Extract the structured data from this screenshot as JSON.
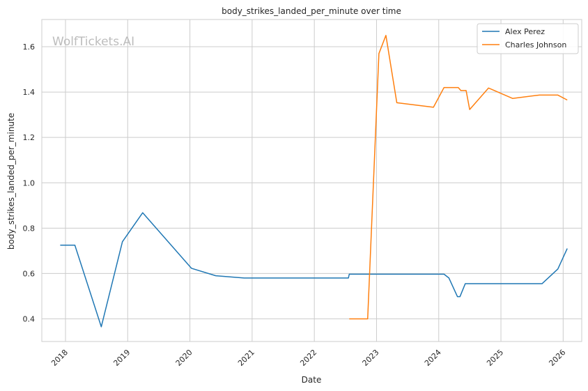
{
  "chart_data": {
    "type": "line",
    "title": "body_strikes_landed_per_minute over time",
    "xlabel": "Date",
    "ylabel": "body_strikes_landed_per_minute",
    "watermark": "WolfTickets.AI",
    "x_ticks": [
      "2018",
      "2019",
      "2020",
      "2021",
      "2022",
      "2023",
      "2024",
      "2025",
      "2026"
    ],
    "y_ticks": [
      "0.4",
      "0.6",
      "0.8",
      "1.0",
      "1.2",
      "1.4",
      "1.6"
    ],
    "xlim": [
      "2017-08-15",
      "2026-04-20"
    ],
    "ylim": [
      0.3,
      1.72
    ],
    "grid": true,
    "legend_position": "top-right",
    "series": [
      {
        "name": "Alex Perez",
        "color": "#1f77b4",
        "points": [
          [
            "2017-12-01",
            0.725
          ],
          [
            "2018-02-25",
            0.725
          ],
          [
            "2018-07-30",
            0.365
          ],
          [
            "2018-12-01",
            0.74
          ],
          [
            "2019-03-30",
            0.868
          ],
          [
            "2020-01-10",
            0.623
          ],
          [
            "2020-06-01",
            0.59
          ],
          [
            "2020-11-15",
            0.58
          ],
          [
            "2022-07-20",
            0.58
          ],
          [
            "2022-07-25",
            0.597
          ],
          [
            "2024-02-01",
            0.597
          ],
          [
            "2024-03-01",
            0.58
          ],
          [
            "2024-04-20",
            0.498
          ],
          [
            "2024-05-05",
            0.498
          ],
          [
            "2024-06-05",
            0.555
          ],
          [
            "2025-08-30",
            0.555
          ],
          [
            "2025-12-01",
            0.62
          ],
          [
            "2026-01-25",
            0.71
          ]
        ]
      },
      {
        "name": "Charles Johnson",
        "color": "#ff7f0e",
        "points": [
          [
            "2022-07-25",
            0.4
          ],
          [
            "2022-11-10",
            0.4
          ],
          [
            "2023-01-15",
            1.57
          ],
          [
            "2023-02-25",
            1.65
          ],
          [
            "2023-04-30",
            1.353
          ],
          [
            "2023-12-01",
            1.333
          ],
          [
            "2024-02-01",
            1.42
          ],
          [
            "2024-04-25",
            1.42
          ],
          [
            "2024-05-10",
            1.407
          ],
          [
            "2024-06-10",
            1.407
          ],
          [
            "2024-07-01",
            1.323
          ],
          [
            "2024-10-20",
            1.418
          ],
          [
            "2025-03-10",
            1.372
          ],
          [
            "2025-08-15",
            1.387
          ],
          [
            "2025-11-30",
            1.387
          ],
          [
            "2026-01-25",
            1.365
          ]
        ]
      }
    ]
  }
}
